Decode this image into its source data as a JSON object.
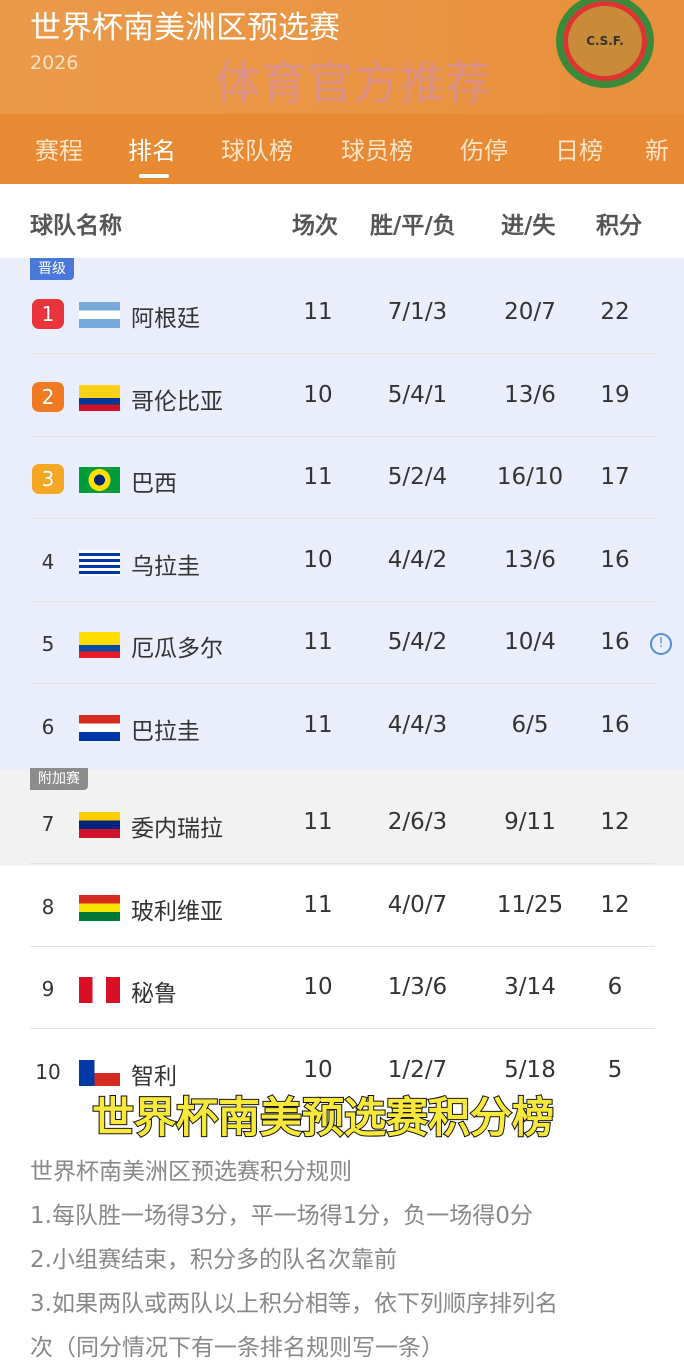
{
  "header": {
    "title": "世界杯南美洲区预选赛",
    "year": "2026",
    "logo_text": "C.S.F."
  },
  "tabs": [
    "赛程",
    "排名",
    "球队榜",
    "球员榜",
    "伤停",
    "日榜",
    "新"
  ],
  "active_tab": 1,
  "columns": {
    "team": "球队名称",
    "played": "场次",
    "wdl": "胜/平/负",
    "goals": "进/失",
    "points": "积分"
  },
  "zones": {
    "qualified": "晋级",
    "playoff": "附加赛"
  },
  "colors": {
    "rank1": "#e8343a",
    "rank2": "#f07a24",
    "rank3": "#f5a623",
    "accent": "#e88a33",
    "qualified_bg": "#e9eefa"
  },
  "rows": [
    {
      "rank": "1",
      "team": "阿根廷",
      "flag": "argentina",
      "played": "11",
      "wdl": "7/1/3",
      "goals": "20/7",
      "points": "22"
    },
    {
      "rank": "2",
      "team": "哥伦比亚",
      "flag": "colombia",
      "played": "10",
      "wdl": "5/4/1",
      "goals": "13/6",
      "points": "19"
    },
    {
      "rank": "3",
      "team": "巴西",
      "flag": "brazil",
      "played": "11",
      "wdl": "5/2/4",
      "goals": "16/10",
      "points": "17"
    },
    {
      "rank": "4",
      "team": "乌拉圭",
      "flag": "uruguay",
      "played": "10",
      "wdl": "4/4/2",
      "goals": "13/6",
      "points": "16"
    },
    {
      "rank": "5",
      "team": "厄瓜多尔",
      "flag": "ecuador",
      "played": "11",
      "wdl": "5/4/2",
      "goals": "10/4",
      "points": "16",
      "info": "!"
    },
    {
      "rank": "6",
      "team": "巴拉圭",
      "flag": "paraguay",
      "played": "11",
      "wdl": "4/4/3",
      "goals": "6/5",
      "points": "16"
    },
    {
      "rank": "7",
      "team": "委内瑞拉",
      "flag": "venezuela",
      "played": "11",
      "wdl": "2/6/3",
      "goals": "9/11",
      "points": "12"
    },
    {
      "rank": "8",
      "team": "玻利维亚",
      "flag": "bolivia",
      "played": "11",
      "wdl": "4/0/7",
      "goals": "11/25",
      "points": "12"
    },
    {
      "rank": "9",
      "team": "秘鲁",
      "flag": "peru",
      "played": "10",
      "wdl": "1/3/6",
      "goals": "3/14",
      "points": "6"
    },
    {
      "rank": "10",
      "team": "智利",
      "flag": "chile",
      "played": "10",
      "wdl": "1/2/7",
      "goals": "5/18",
      "points": "5"
    }
  ],
  "caption": "世界杯南美预选赛积分榜",
  "rules": [
    "世界杯南美洲区预选赛积分规则",
    "1.每队胜一场得3分，平一场得1分，负一场得0分",
    "2.小组赛结束，积分多的队名次靠前",
    "3.如果两队或两队以上积分相等，依下列顺序排列名",
    "次（同分情况下有一条排名规则写一条）"
  ],
  "watermark": "体育官方推荐"
}
